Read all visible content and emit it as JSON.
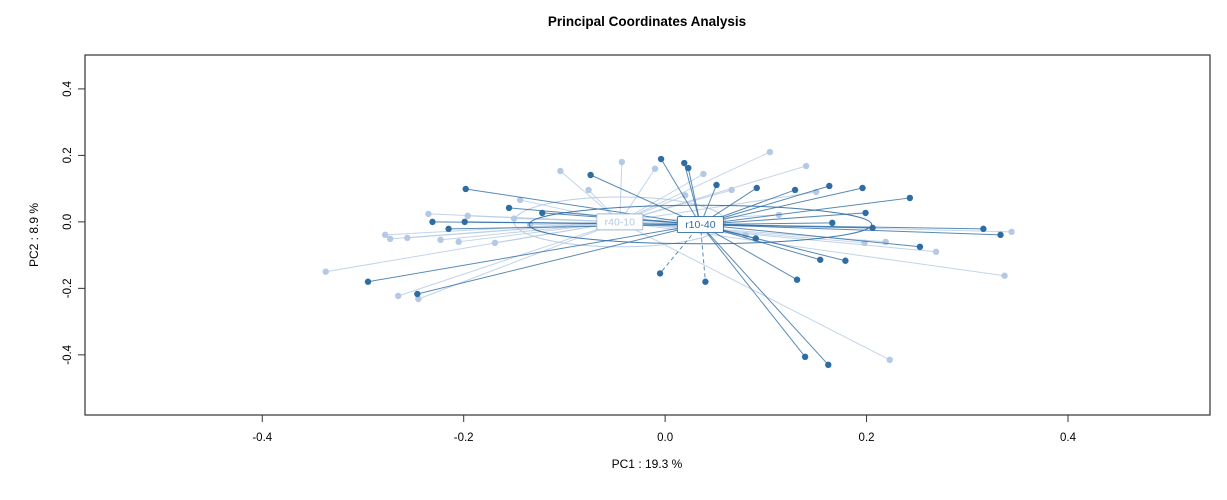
{
  "chart_data": {
    "type": "scatter",
    "title": "Principal Coordinates Analysis",
    "xlabel": "PC1 :  19.3 %",
    "ylabel": "PC2 :  8.9 %",
    "xlim": [
      -0.576,
      0.541
    ],
    "ylim": [
      -0.581,
      0.502
    ],
    "xticks": [
      -0.4,
      -0.2,
      0.0,
      0.2,
      0.4
    ],
    "yticks": [
      -0.4,
      -0.2,
      0.0,
      0.2,
      0.4
    ],
    "grid": false,
    "legend_position": "none",
    "groups": [
      {
        "name": "r40-10",
        "color": "#b4c9e3",
        "label_border_color": "#9fb8d6",
        "centroid": [
          -0.045,
          0.0
        ],
        "ellipse": {
          "rx": 0.105,
          "ry": 0.075
        },
        "points": [
          [
            -0.337,
            -0.15
          ],
          [
            -0.278,
            -0.039
          ],
          [
            -0.273,
            -0.051
          ],
          [
            -0.265,
            -0.223
          ],
          [
            -0.256,
            -0.048
          ],
          [
            -0.245,
            -0.232
          ],
          [
            -0.235,
            0.024
          ],
          [
            -0.223,
            -0.054
          ],
          [
            -0.205,
            -0.06
          ],
          [
            -0.196,
            0.018
          ],
          [
            -0.169,
            -0.063
          ],
          [
            -0.15,
            0.01
          ],
          [
            -0.144,
            0.066
          ],
          [
            -0.134,
            -0.009
          ],
          [
            -0.104,
            0.153
          ],
          [
            -0.076,
            0.096
          ],
          [
            -0.043,
            0.18
          ],
          [
            -0.01,
            0.16
          ],
          [
            0.02,
            0.08
          ],
          [
            0.038,
            0.144
          ],
          [
            0.066,
            0.096
          ],
          [
            0.08,
            -0.04
          ],
          [
            0.104,
            0.21
          ],
          [
            0.113,
            0.021
          ],
          [
            0.14,
            0.168
          ],
          [
            0.15,
            0.09
          ],
          [
            0.198,
            -0.063
          ],
          [
            0.219,
            -0.06
          ],
          [
            0.269,
            -0.09
          ],
          [
            0.223,
            -0.415
          ],
          [
            0.337,
            -0.162
          ],
          [
            0.344,
            -0.03
          ]
        ]
      },
      {
        "name": "r10-40",
        "color": "#2e6da4",
        "label_border_color": "#2e6da4",
        "centroid": [
          0.035,
          -0.008
        ],
        "ellipse": {
          "rx": 0.17,
          "ry": 0.058
        },
        "points": [
          [
            -0.295,
            -0.18
          ],
          [
            -0.246,
            -0.217
          ],
          [
            -0.231,
            0.0
          ],
          [
            -0.215,
            -0.021
          ],
          [
            -0.199,
            0.0
          ],
          [
            -0.198,
            0.099
          ],
          [
            -0.155,
            0.042
          ],
          [
            -0.122,
            0.027
          ],
          [
            -0.074,
            0.141
          ],
          [
            -0.004,
            0.189
          ],
          [
            0.019,
            0.177
          ],
          [
            0.023,
            0.162
          ],
          [
            0.051,
            0.111
          ],
          [
            0.091,
            0.102
          ],
          [
            0.129,
            0.096
          ],
          [
            0.163,
            0.108
          ],
          [
            0.196,
            0.102
          ],
          [
            0.199,
            0.027
          ],
          [
            0.243,
            0.072
          ],
          [
            0.166,
            -0.003
          ],
          [
            0.206,
            -0.018
          ],
          [
            0.253,
            -0.075
          ],
          [
            0.316,
            -0.021
          ],
          [
            0.333,
            -0.039
          ],
          [
            0.09,
            -0.05
          ],
          [
            0.131,
            -0.174
          ],
          [
            0.154,
            -0.114
          ],
          [
            0.179,
            -0.117
          ],
          [
            -0.005,
            -0.155,
            "dashed"
          ],
          [
            0.04,
            -0.18,
            "dashed"
          ],
          [
            0.139,
            -0.406
          ],
          [
            0.162,
            -0.43
          ]
        ]
      }
    ]
  }
}
